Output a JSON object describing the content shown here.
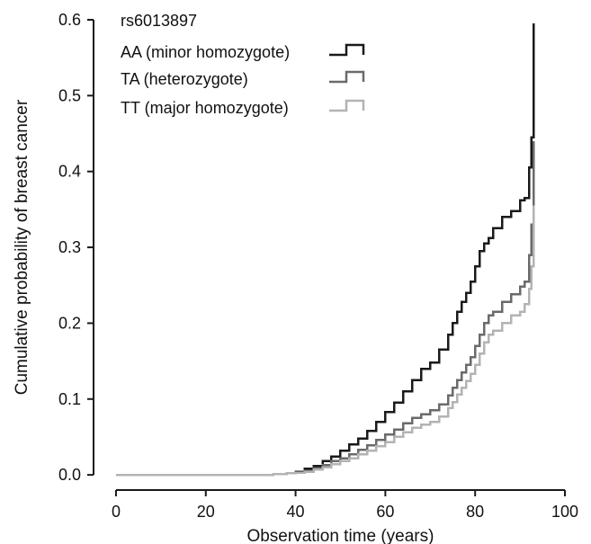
{
  "chart_data": {
    "type": "line",
    "subtype": "step",
    "title": "",
    "xlabel": "Observation time (years)",
    "ylabel": "Cumulative probability of breast cancer",
    "xlim": [
      -5,
      100
    ],
    "ylim": [
      -0.02,
      0.6
    ],
    "xticks": [
      0,
      20,
      40,
      60,
      80,
      100
    ],
    "yticks": [
      0.0,
      0.1,
      0.2,
      0.3,
      0.4,
      0.5,
      0.6
    ],
    "xtick_labels": [
      "0",
      "20",
      "40",
      "60",
      "80",
      "100"
    ],
    "ytick_labels": [
      "0.0",
      "0.1",
      "0.2",
      "0.3",
      "0.4",
      "0.5",
      "0.6"
    ],
    "grid": false,
    "legend": {
      "title": "rs6013897",
      "placement": "top-left"
    },
    "series": [
      {
        "name": "AA (minor homozygote)",
        "color": "#1a1a1a",
        "x": [
          0,
          30,
          35,
          38,
          40,
          42,
          44,
          46,
          48,
          50,
          52,
          54,
          56,
          58,
          60,
          62,
          64,
          66,
          68,
          70,
          72,
          74,
          75,
          76,
          77,
          78,
          79,
          80,
          81,
          82,
          83,
          84,
          86,
          88,
          90,
          91,
          92,
          92.5,
          93
        ],
        "y": [
          0.0,
          0.0,
          0.001,
          0.002,
          0.004,
          0.008,
          0.012,
          0.018,
          0.024,
          0.032,
          0.04,
          0.048,
          0.058,
          0.07,
          0.083,
          0.095,
          0.11,
          0.125,
          0.14,
          0.148,
          0.165,
          0.185,
          0.2,
          0.215,
          0.228,
          0.24,
          0.255,
          0.275,
          0.295,
          0.305,
          0.312,
          0.325,
          0.34,
          0.348,
          0.362,
          0.365,
          0.405,
          0.445,
          0.595
        ]
      },
      {
        "name": "TA (heterozygote)",
        "color": "#6a6a6a",
        "x": [
          0,
          30,
          35,
          38,
          40,
          42,
          44,
          46,
          48,
          50,
          52,
          54,
          56,
          58,
          60,
          62,
          64,
          66,
          68,
          70,
          72,
          74,
          75,
          76,
          77,
          78,
          79,
          80,
          81,
          82,
          83,
          84,
          86,
          88,
          90,
          91,
          92,
          92.5,
          93
        ],
        "y": [
          0.0,
          0.0,
          0.001,
          0.002,
          0.003,
          0.005,
          0.009,
          0.013,
          0.018,
          0.022,
          0.027,
          0.033,
          0.039,
          0.046,
          0.053,
          0.06,
          0.068,
          0.075,
          0.08,
          0.085,
          0.093,
          0.105,
          0.115,
          0.125,
          0.135,
          0.145,
          0.155,
          0.17,
          0.185,
          0.2,
          0.21,
          0.215,
          0.228,
          0.238,
          0.248,
          0.255,
          0.29,
          0.33,
          0.44
        ]
      },
      {
        "name": "TT (major homozygote)",
        "color": "#b3b3b3",
        "x": [
          0,
          30,
          35,
          38,
          40,
          42,
          44,
          46,
          48,
          50,
          52,
          54,
          56,
          58,
          60,
          62,
          64,
          66,
          68,
          70,
          72,
          74,
          75,
          76,
          77,
          78,
          79,
          80,
          81,
          82,
          83,
          84,
          86,
          88,
          90,
          91,
          92,
          92.5,
          93
        ],
        "y": [
          0.0,
          0.0,
          0.001,
          0.002,
          0.003,
          0.004,
          0.007,
          0.01,
          0.014,
          0.018,
          0.022,
          0.027,
          0.032,
          0.038,
          0.043,
          0.05,
          0.056,
          0.062,
          0.066,
          0.07,
          0.077,
          0.088,
          0.096,
          0.106,
          0.115,
          0.124,
          0.133,
          0.145,
          0.16,
          0.175,
          0.185,
          0.19,
          0.2,
          0.21,
          0.215,
          0.225,
          0.245,
          0.275,
          0.355
        ]
      }
    ]
  }
}
